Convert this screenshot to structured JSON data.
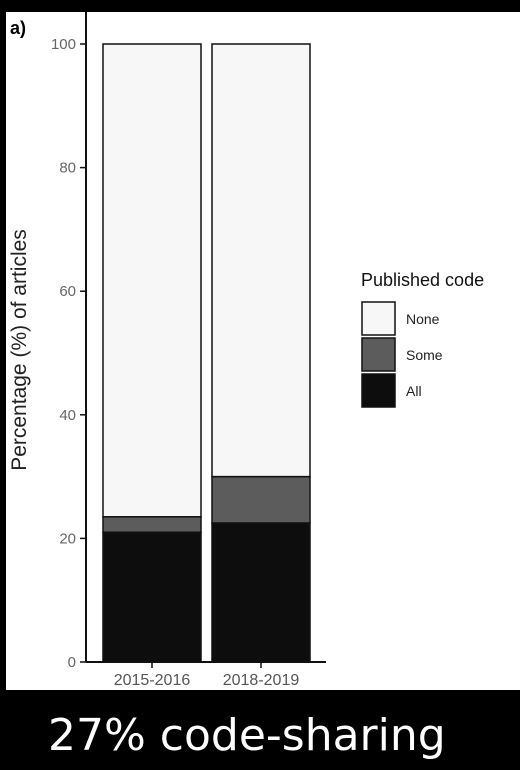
{
  "panel_label": "a)",
  "caption": "27% code-sharing",
  "chart_data": {
    "type": "bar",
    "stacked": true,
    "categories": [
      "2015-2016",
      "2018-2019"
    ],
    "series": [
      {
        "name": "All",
        "values": [
          21,
          22.5
        ],
        "color": "#0d0d0d"
      },
      {
        "name": "Some",
        "values": [
          2.5,
          7.5
        ],
        "color": "#5c5c5c"
      },
      {
        "name": "None",
        "values": [
          76.5,
          70
        ],
        "color": "#f7f7f7"
      }
    ],
    "ylabel": "Percentage (%) of articles",
    "xlabel": "",
    "ylim": [
      0,
      100
    ],
    "yticks": [
      0,
      20,
      40,
      60,
      80,
      100
    ],
    "grid": false,
    "legend": {
      "title": "Published code",
      "position": "right",
      "entries": [
        "None",
        "Some",
        "All"
      ]
    }
  }
}
